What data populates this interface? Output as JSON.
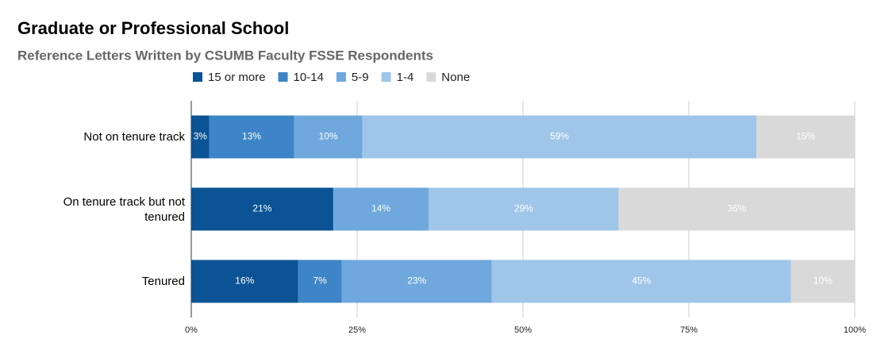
{
  "chart_data": {
    "type": "stacked-bar-horizontal",
    "title": "Graduate or Professional School",
    "subtitle": "Reference Letters Written by CSUMB Faculty FSSE Respondents",
    "categories": [
      "Not on tenure track",
      "On tenure track but not tenured",
      "Tenured"
    ],
    "series": [
      {
        "name": "15 or more",
        "color": "#0b5394",
        "values": [
          2.7,
          21.4,
          16.1
        ],
        "value_labels": [
          "3%",
          "21%",
          "16%"
        ]
      },
      {
        "name": "10-14",
        "color": "#3d85c6",
        "values": [
          12.8,
          0,
          6.6
        ],
        "value_labels": [
          "13%",
          null,
          "7%"
        ]
      },
      {
        "name": "5-9",
        "color": "#6fa8dc",
        "values": [
          10.3,
          14.4,
          22.6
        ],
        "value_labels": [
          "10%",
          "14%",
          "23%"
        ]
      },
      {
        "name": "1-4",
        "color": "#9fc5e8",
        "values": [
          59.4,
          28.6,
          45.1
        ],
        "value_labels": [
          "59%",
          "29%",
          "45%"
        ]
      },
      {
        "name": "None",
        "color": "#d9d9d9",
        "values": [
          14.8,
          35.6,
          9.6
        ],
        "value_labels": [
          "15%",
          "36%",
          "10%"
        ]
      }
    ],
    "xlim": [
      0,
      100
    ],
    "xticks": [
      {
        "value": 0,
        "label": "0%"
      },
      {
        "value": 25,
        "label": "25%"
      },
      {
        "value": 50,
        "label": "50%"
      },
      {
        "value": 75,
        "label": "75%"
      },
      {
        "value": 100,
        "label": "100%"
      }
    ],
    "grid": true,
    "legend": "top"
  }
}
